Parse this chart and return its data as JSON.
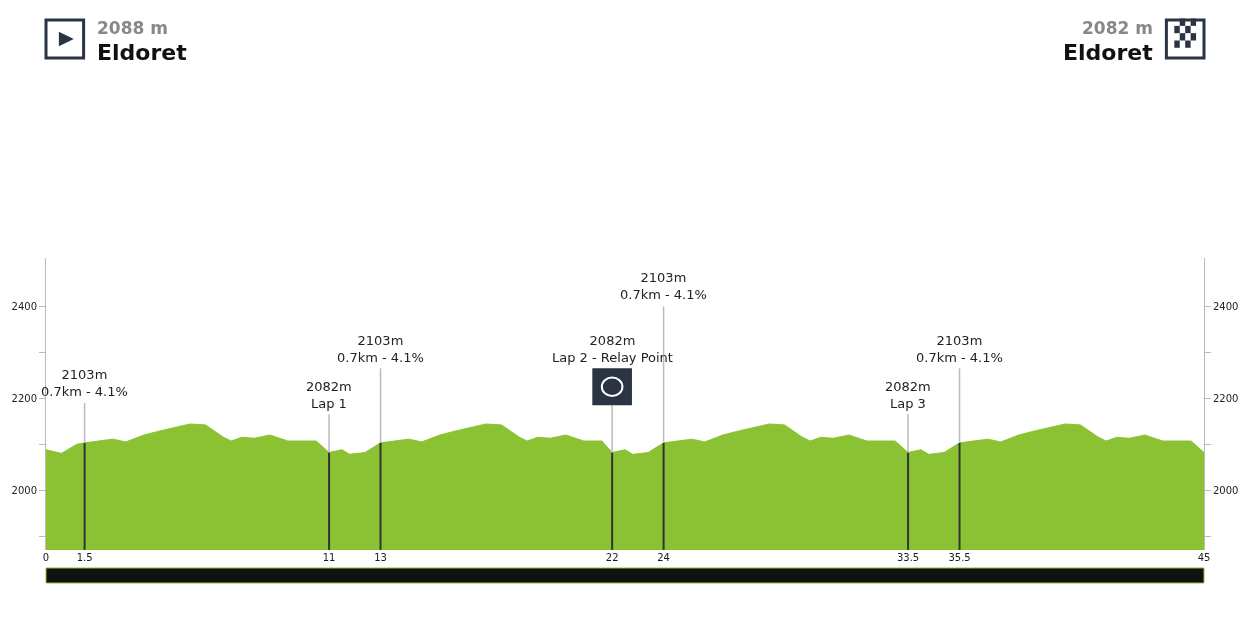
{
  "chart_data": {
    "type": "area",
    "x": [
      0,
      0.6,
      1.2,
      1.5,
      2.6,
      3.1,
      3.8,
      4.5,
      5.6,
      6.2,
      6.9,
      7.2,
      7.6,
      8.1,
      8.7,
      9.4,
      10.5,
      11,
      11.5,
      11.8,
      12.4,
      13,
      14.1,
      14.6,
      15.3,
      16,
      17.1,
      17.7,
      18.4,
      18.7,
      19.1,
      19.6,
      20.2,
      20.9,
      21.6,
      22,
      22.5,
      22.8,
      23.4,
      24,
      25.1,
      25.6,
      26.3,
      27,
      28.1,
      28.7,
      29.4,
      29.7,
      30.1,
      30.6,
      31.2,
      31.9,
      33,
      33.5,
      34,
      34.3,
      34.9,
      35.5,
      36.6,
      37.1,
      37.8,
      38.5,
      39.6,
      40.2,
      40.9,
      41.2,
      41.6,
      42.1,
      42.7,
      43.4,
      44.5,
      45
    ],
    "series": [
      {
        "color": "#8bc234",
        "values": [
          2088,
          2080,
          2100,
          2103,
          2111,
          2105,
          2120,
          2130,
          2144,
          2142,
          2115,
          2107,
          2115,
          2113,
          2120,
          2107,
          2107,
          2082,
          2088,
          2078,
          2082,
          2103,
          2111,
          2105,
          2120,
          2130,
          2144,
          2142,
          2115,
          2107,
          2115,
          2113,
          2120,
          2107,
          2107,
          2082,
          2088,
          2078,
          2082,
          2103,
          2111,
          2105,
          2120,
          2130,
          2144,
          2142,
          2115,
          2107,
          2115,
          2113,
          2120,
          2107,
          2107,
          2082,
          2088,
          2078,
          2082,
          2103,
          2111,
          2105,
          2120,
          2130,
          2144,
          2142,
          2115,
          2107,
          2115,
          2113,
          2120,
          2107,
          2107,
          2082
        ]
      }
    ],
    "xlim": [
      0,
      45
    ],
    "xticks": [
      0,
      1.5,
      11,
      13,
      22,
      24,
      33.5,
      35.5,
      45
    ],
    "ylim": [
      1870,
      2505
    ],
    "yticks": [
      {
        "value": 1900,
        "label": null
      },
      2000,
      {
        "value": 2100,
        "label": null
      },
      2200,
      {
        "value": 2300,
        "label": null
      },
      2400
    ],
    "y2lim": [
      1870,
      2505
    ],
    "y2ticks": [
      {
        "value": 1900,
        "label": null
      },
      2000,
      {
        "value": 2100,
        "label": null
      },
      2200,
      {
        "value": 2300,
        "label": null
      },
      2400
    ],
    "annotations": [
      "2088 m",
      "Eldoret",
      "2082 m",
      "Eldoret"
    ],
    "ref_lines": [
      {
        "axis": "x",
        "value": 1.5,
        "label": "2103m\n0.7km - 4.1%",
        "color": "#333333"
      },
      {
        "axis": "x",
        "value": 11,
        "label": "2082m\nLap 1",
        "color": "#333333"
      },
      {
        "axis": "x",
        "value": 13,
        "label": "2103m\n0.7km - 4.1%",
        "color": "#333333"
      },
      {
        "axis": "x",
        "value": 22,
        "label": "2082m\nLap 2 - Relay Point",
        "color": "#333333"
      },
      {
        "axis": "x",
        "value": 24,
        "label": "2103m\n0.7km - 4.1%",
        "color": "#333333"
      },
      {
        "axis": "x",
        "value": 33.5,
        "label": "2082m\nLap 3",
        "color": "#333333"
      },
      {
        "axis": "x",
        "value": 35.5,
        "label": "2103m\n0.7km - 4.1%",
        "color": "#333333"
      }
    ]
  }
}
